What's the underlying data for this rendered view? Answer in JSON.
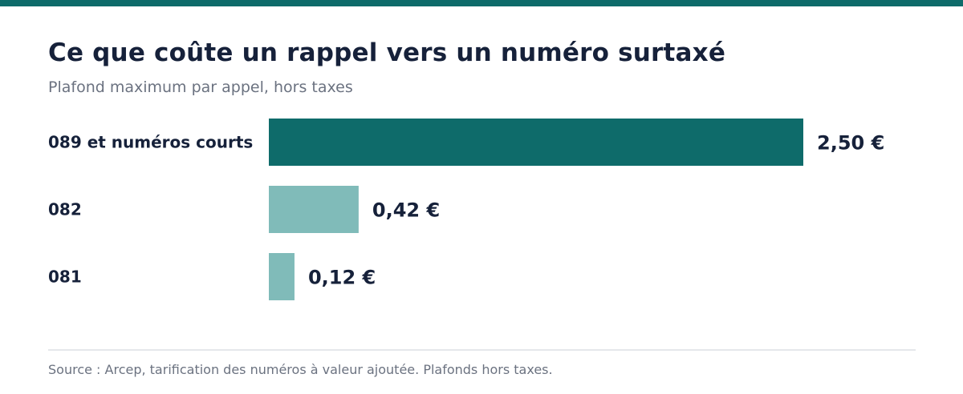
{
  "header": {
    "title": "Ce que coûte un rappel vers un numéro surtaxé",
    "subtitle": "Plafond maximum par appel, hors taxes"
  },
  "footer": {
    "source": "Source : Arcep, tarification des numéros à valeur ajoutée. Plafonds hors taxes."
  },
  "colors": {
    "accent": "#0e6b6a",
    "bar_primary": "#0e6b6a",
    "bar_secondary": "#80bbb9",
    "text": "#16213a",
    "muted": "#6b7280"
  },
  "chart_data": {
    "type": "bar",
    "orientation": "horizontal",
    "categories": [
      "089 et numéros courts",
      "082",
      "081"
    ],
    "values": [
      2.5,
      0.42,
      0.12
    ],
    "value_labels": [
      "2,50 €",
      "0,42 €",
      "0,12 €"
    ],
    "highlight_index": 0,
    "xlim": [
      0,
      2.5
    ],
    "grid": false,
    "legend": "none"
  }
}
